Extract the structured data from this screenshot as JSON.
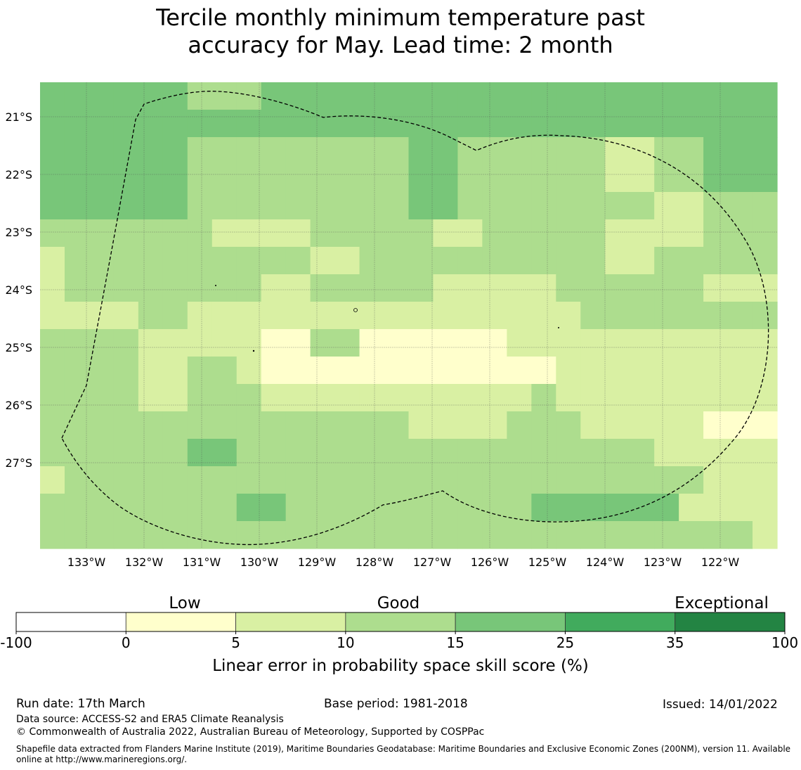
{
  "title": {
    "line1": "Tercile monthly minimum temperature past",
    "line2": "accuracy for May. Lead time: 2 month"
  },
  "map": {
    "lat_labels": [
      "21°S",
      "22°S",
      "23°S",
      "24°S",
      "25°S",
      "26°S",
      "27°S"
    ],
    "lon_labels": [
      "133°W",
      "132°W",
      "131°W",
      "130°W",
      "129°W",
      "128°W",
      "127°W",
      "126°W",
      "125°W",
      "124°W",
      "123°W",
      "122°W"
    ],
    "grid_skill_class": [
      [
        3,
        3,
        3,
        3,
        3,
        3,
        2,
        2,
        2,
        3,
        3,
        3,
        3,
        3,
        3,
        3,
        3,
        3,
        3,
        3,
        3,
        3,
        3,
        3,
        3,
        3,
        3,
        3,
        3,
        3
      ],
      [
        3,
        3,
        3,
        3,
        3,
        3,
        3,
        3,
        3,
        3,
        3,
        3,
        3,
        3,
        3,
        3,
        3,
        3,
        3,
        3,
        3,
        3,
        3,
        3,
        3,
        3,
        3,
        3,
        3,
        3
      ],
      [
        3,
        3,
        3,
        3,
        3,
        3,
        2,
        2,
        2,
        2,
        2,
        2,
        2,
        2,
        2,
        3,
        3,
        2,
        2,
        2,
        2,
        2,
        2,
        1,
        1,
        2,
        2,
        3,
        3,
        3
      ],
      [
        3,
        3,
        3,
        3,
        3,
        3,
        2,
        2,
        2,
        2,
        2,
        2,
        2,
        2,
        2,
        3,
        3,
        2,
        2,
        2,
        2,
        2,
        2,
        1,
        1,
        2,
        2,
        3,
        3,
        3
      ],
      [
        3,
        3,
        3,
        3,
        3,
        3,
        2,
        2,
        2,
        2,
        2,
        2,
        2,
        2,
        2,
        3,
        3,
        2,
        2,
        2,
        2,
        2,
        2,
        2,
        2,
        1,
        1,
        2,
        2,
        2
      ],
      [
        2,
        2,
        2,
        2,
        2,
        2,
        2,
        1,
        1,
        1,
        1,
        2,
        2,
        2,
        2,
        2,
        1,
        1,
        2,
        2,
        2,
        2,
        2,
        1,
        1,
        1,
        1,
        2,
        2,
        2
      ],
      [
        1,
        2,
        2,
        2,
        2,
        2,
        2,
        2,
        2,
        2,
        2,
        1,
        1,
        2,
        2,
        2,
        2,
        2,
        2,
        2,
        2,
        2,
        2,
        1,
        1,
        2,
        2,
        2,
        2,
        2
      ],
      [
        1,
        2,
        2,
        2,
        2,
        2,
        2,
        2,
        2,
        1,
        1,
        2,
        2,
        2,
        2,
        2,
        1,
        1,
        1,
        1,
        1,
        2,
        2,
        2,
        2,
        2,
        2,
        1,
        1,
        1
      ],
      [
        1,
        1,
        1,
        1,
        2,
        2,
        1,
        1,
        1,
        1,
        1,
        1,
        1,
        1,
        1,
        1,
        1,
        1,
        1,
        1,
        1,
        1,
        2,
        2,
        2,
        2,
        2,
        2,
        2,
        2
      ],
      [
        2,
        2,
        2,
        2,
        1,
        1,
        1,
        1,
        1,
        0,
        0,
        2,
        2,
        0,
        0,
        0,
        0,
        0,
        0,
        1,
        1,
        1,
        1,
        1,
        1,
        1,
        1,
        1,
        1,
        1
      ],
      [
        2,
        2,
        2,
        2,
        1,
        1,
        2,
        2,
        1,
        0,
        0,
        0,
        0,
        0,
        0,
        0,
        0,
        0,
        0,
        0,
        0,
        1,
        1,
        1,
        1,
        1,
        1,
        1,
        1,
        1
      ],
      [
        2,
        2,
        2,
        2,
        1,
        1,
        2,
        2,
        2,
        1,
        1,
        1,
        1,
        1,
        1,
        1,
        1,
        1,
        1,
        1,
        2,
        1,
        1,
        1,
        1,
        1,
        1,
        1,
        1,
        1
      ],
      [
        2,
        2,
        2,
        2,
        2,
        2,
        2,
        2,
        2,
        2,
        2,
        2,
        2,
        2,
        2,
        1,
        1,
        1,
        1,
        2,
        2,
        2,
        1,
        1,
        1,
        1,
        1,
        0,
        0,
        0
      ],
      [
        2,
        2,
        2,
        2,
        2,
        2,
        3,
        3,
        2,
        2,
        2,
        2,
        2,
        2,
        2,
        2,
        2,
        2,
        2,
        2,
        2,
        2,
        2,
        2,
        2,
        1,
        1,
        1,
        1,
        1
      ],
      [
        1,
        2,
        2,
        2,
        2,
        2,
        2,
        2,
        2,
        2,
        2,
        2,
        2,
        2,
        2,
        2,
        2,
        2,
        2,
        2,
        2,
        2,
        2,
        2,
        2,
        2,
        2,
        1,
        1,
        1
      ],
      [
        2,
        2,
        2,
        2,
        2,
        2,
        2,
        2,
        3,
        3,
        2,
        2,
        2,
        2,
        2,
        2,
        2,
        2,
        2,
        2,
        3,
        3,
        3,
        3,
        3,
        3,
        1,
        1,
        1,
        1
      ],
      [
        2,
        2,
        2,
        2,
        2,
        2,
        2,
        2,
        2,
        2,
        2,
        2,
        2,
        2,
        2,
        2,
        2,
        2,
        2,
        2,
        2,
        2,
        2,
        2,
        2,
        2,
        2,
        2,
        2,
        1
      ]
    ]
  },
  "legend": {
    "category_labels": [
      "Low",
      "Good",
      "Exceptional"
    ],
    "bins": [
      {
        "from": -100,
        "to": 0,
        "color": "#ffffff"
      },
      {
        "from": 0,
        "to": 5,
        "color": "#ffffcc"
      },
      {
        "from": 5,
        "to": 10,
        "color": "#d9f0a3"
      },
      {
        "from": 10,
        "to": 15,
        "color": "#addd8e"
      },
      {
        "from": 15,
        "to": 25,
        "color": "#78c679"
      },
      {
        "from": 25,
        "to": 35,
        "color": "#41ab5d"
      },
      {
        "from": 35,
        "to": 100,
        "color": "#238443"
      }
    ],
    "tick_labels": [
      "-100",
      "0",
      "5",
      "10",
      "15",
      "25",
      "35",
      "100"
    ],
    "axis_label": "Linear error in probability space skill score (%)"
  },
  "footer": {
    "run_date": "Run date: 17th March",
    "base_period": "Base period: 1981-2018",
    "issued": "Issued: 14/01/2022",
    "data_source": "Data source: ACCESS-S2 and ERA5 Climate Reanalysis",
    "copyright": "© Commonwealth of Australia 2022, Australian Bureau of Meteorology, Supported by COSPPac",
    "shapefile": "Shapefile data extracted from Flanders Marine Institute (2019), Maritime Boundaries Geodatabase: Maritime Boundaries and Exclusive Economic Zones (200NM), version 11. Available online at http://www.marineregions.org/."
  }
}
